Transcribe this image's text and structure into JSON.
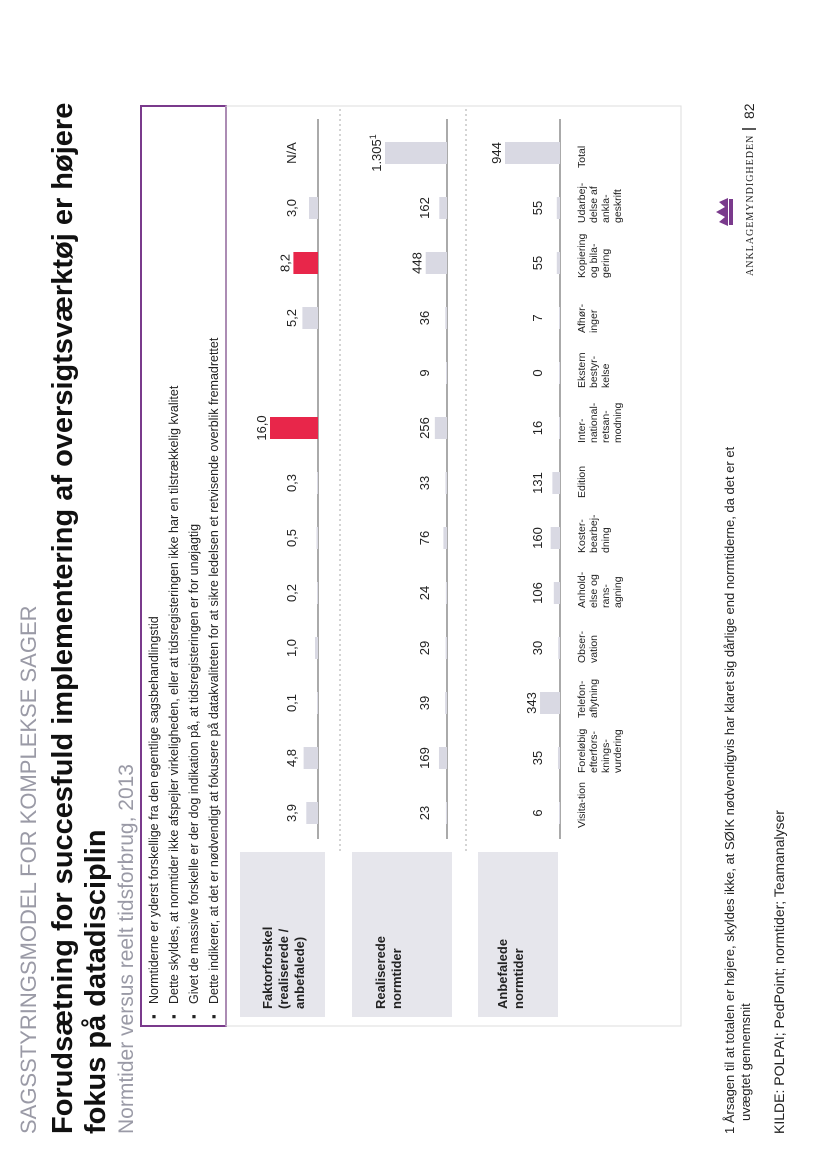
{
  "header": {
    "section": "SAGSSTYRINGSMODEL FOR KOMPLEKSE SAGER",
    "title_line1": "Forudsætning for succesfuld implementering af oversigtsværktøj er højere",
    "title_line2": "fokus på datadisciplin",
    "subtitle": "Normtider versus reelt tidsforbrug, 2013"
  },
  "bullets": [
    "Normtiderne er yderst forskellige fra den egentlige sagsbehandlingstid",
    "Dette skyldes, at normtider ikke afspejler virkeligheden, eller at tidsregisteringen ikke har en tilstrækkelig kvalitet",
    "Givet de massive forskelle er der dog indikation på, at tidsregisteringen er for unøjagtig",
    "Dette indikerer, at det er nødvendigt at fokusere på datakvaliteten for at sikre ledelsen et retvisende overblik fremadrettet"
  ],
  "row_labels": {
    "factor": [
      "Faktorforskel",
      "(realiserede /",
      "anbefalede)"
    ],
    "realized": [
      "Realiserede",
      "normtider"
    ],
    "recommended": [
      "Anbefalede",
      "normtider"
    ]
  },
  "colors": {
    "accent": "#e8264a",
    "bar": "#d9d9e3",
    "frame": "#7a3a8c",
    "label_box": "#e6e6ec"
  },
  "chart_data": {
    "type": "bar",
    "categories": [
      [
        "Visita-tion"
      ],
      [
        "Foreløbig",
        "efterfors-",
        "knings-",
        "vurdering"
      ],
      [
        "Telefon-",
        "aflytning"
      ],
      [
        "Obser-",
        "vation"
      ],
      [
        "Anhold-",
        "else og",
        "rans-",
        "agning"
      ],
      [
        "Koster-",
        "bearbej-",
        "dning"
      ],
      [
        "Edition"
      ],
      [
        "Inter-",
        "national-",
        "retsan-",
        "modning"
      ],
      [
        "Ekstern",
        "bestyr-",
        "kelse"
      ],
      [
        "Afhør-",
        "inger"
      ],
      [
        "Kopiering",
        "og bila-",
        "gering"
      ],
      [
        "Udarbej-",
        "delse af",
        "ankla-",
        "geskrift"
      ],
      [
        "Total"
      ]
    ],
    "series": [
      {
        "key": "factor",
        "values": [
          3.9,
          4.8,
          0.1,
          1.0,
          0.2,
          0.5,
          0.3,
          16.0,
          null,
          5.2,
          8.2,
          3.0,
          null
        ],
        "labels": [
          "3,9",
          "4,8",
          "0,1",
          "1,0",
          "0,2",
          "0,5",
          "0,3",
          "16,0",
          "",
          "5,2",
          "8,2",
          "3,0",
          "N/A"
        ],
        "highlight": [
          false,
          false,
          false,
          false,
          false,
          false,
          false,
          true,
          false,
          false,
          true,
          false,
          false
        ]
      },
      {
        "key": "realized",
        "values": [
          23,
          169,
          39,
          29,
          24,
          76,
          33,
          256,
          9,
          36,
          448,
          162,
          1305
        ],
        "labels": [
          "23",
          "169",
          "39",
          "29",
          "24",
          "76",
          "33",
          "256",
          "9",
          "36",
          "448",
          "162",
          "1.305"
        ],
        "footnote_on_total": "1"
      },
      {
        "key": "recommended",
        "values": [
          6,
          35,
          343,
          30,
          106,
          160,
          131,
          16,
          0,
          7,
          55,
          55,
          944
        ],
        "labels": [
          "6",
          "35",
          "343",
          "30",
          "106",
          "160",
          "131",
          "16",
          "0",
          "7",
          "55",
          "55",
          "944"
        ]
      }
    ]
  },
  "footnote": [
    "1 Årsagen til at totalen er højere, skyldes ikke, at SØIK nødvendigvis har klaret sig dårlige end normtiderne, da det er et",
    "uvægtet gennemsnit"
  ],
  "source": "KILDE: POLPAI; PedPoint; normtider; Teamanalyser",
  "footer": {
    "brand": "ANKLAGEMYNDIGHEDEN",
    "page": "82"
  }
}
